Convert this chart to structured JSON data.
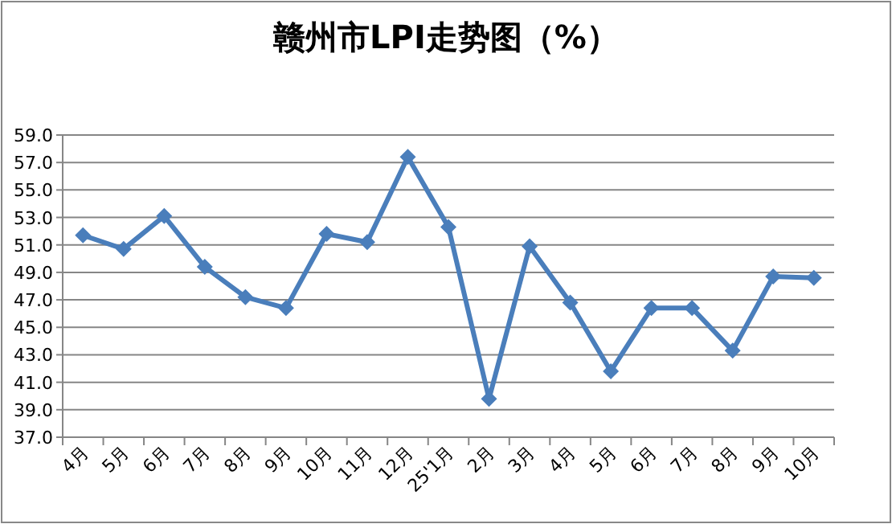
{
  "chart_data": {
    "type": "line",
    "title": "赣州市LPI走势图（%）",
    "categories": [
      "4月",
      "5月",
      "6月",
      "7月",
      "8月",
      "9月",
      "10月",
      "11月",
      "12月",
      "25'1月",
      "2月",
      "3月",
      "4月",
      "5月",
      "6月",
      "7月",
      "8月",
      "9月",
      "10月"
    ],
    "series": [
      {
        "color": "#4a7ebb",
        "values": [
          51.7,
          50.7,
          53.1,
          49.4,
          47.2,
          46.4,
          51.8,
          51.2,
          57.4,
          52.3,
          39.8,
          50.9,
          46.8,
          41.8,
          46.4,
          46.4,
          43.3,
          48.7,
          48.6
        ]
      }
    ],
    "ylim": [
      37,
      59
    ],
    "yticks": [
      {
        "value": 37,
        "label": "37.0"
      },
      {
        "value": 39,
        "label": "39.0"
      },
      {
        "value": 41,
        "label": "41.0"
      },
      {
        "value": 43,
        "label": "43.0"
      },
      {
        "value": 45,
        "label": "45.0"
      },
      {
        "value": 47,
        "label": "47.0"
      },
      {
        "value": 49,
        "label": "49.0"
      },
      {
        "value": 51,
        "label": "51.0"
      },
      {
        "value": 53,
        "label": "53.0"
      },
      {
        "value": 55,
        "label": "55.0"
      },
      {
        "value": 57,
        "label": "57.0"
      },
      {
        "value": 59,
        "label": "59.0"
      }
    ],
    "grid": "y",
    "marker": "diamond",
    "line_style": "solid"
  }
}
